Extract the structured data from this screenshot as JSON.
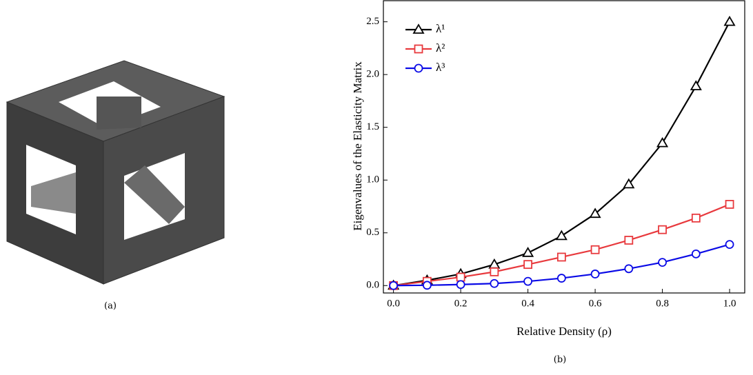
{
  "chart_data": {
    "type": "line",
    "xlabel": "Relative Density (ρ)",
    "ylabel": "Eigenvalues of the Elasticity Matrix",
    "x": [
      0,
      0.1,
      0.2,
      0.3,
      0.4,
      0.5,
      0.6,
      0.7,
      0.8,
      0.9,
      1
    ],
    "series": [
      {
        "name": "λ¹",
        "color": "#000000",
        "marker": "triangle",
        "values": [
          0,
          0.05,
          0.11,
          0.2,
          0.31,
          0.47,
          0.68,
          0.96,
          1.35,
          1.89,
          2.5
        ]
      },
      {
        "name": "λ²",
        "color": "#e8393d",
        "marker": "square",
        "values": [
          0,
          0.04,
          0.08,
          0.13,
          0.2,
          0.27,
          0.34,
          0.43,
          0.53,
          0.64,
          0.77
        ]
      },
      {
        "name": "λ³",
        "color": "#0a0ae6",
        "marker": "circle",
        "values": [
          0,
          0.003,
          0.01,
          0.02,
          0.04,
          0.07,
          0.11,
          0.16,
          0.22,
          0.3,
          0.39
        ]
      }
    ],
    "xlim": [
      -0.03,
      1.045
    ],
    "ylim": [
      -0.07,
      2.7
    ],
    "xticks": [
      {
        "value": 0,
        "label": "0.0"
      },
      0.2,
      0.4,
      0.6,
      0.8,
      {
        "value": 1,
        "label": "1.0"
      }
    ],
    "yticks": [
      {
        "value": 0,
        "label": "0.0"
      },
      0.5,
      {
        "value": 1,
        "label": "1.0"
      },
      1.5,
      {
        "value": 2,
        "label": "2.0"
      },
      2.5
    ],
    "legend": "upper left",
    "grid": false
  },
  "captions": [
    "(a)",
    "(b)"
  ]
}
